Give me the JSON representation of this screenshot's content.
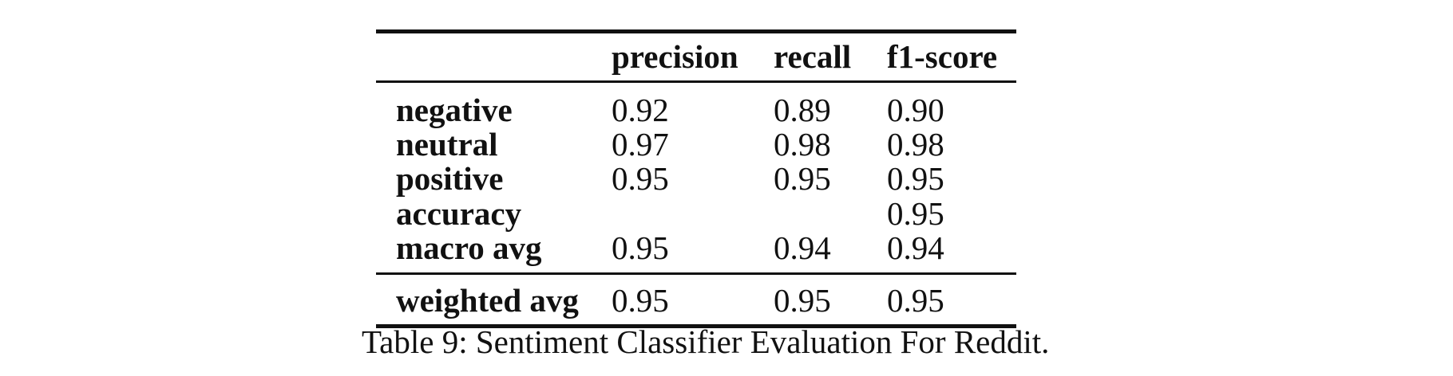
{
  "table": {
    "columns": [
      "",
      "precision",
      "recall",
      "f1-score"
    ],
    "rows": [
      {
        "label": "negative",
        "precision": "0.92",
        "recall": "0.89",
        "f1": "0.90"
      },
      {
        "label": "neutral",
        "precision": "0.97",
        "recall": "0.98",
        "f1": "0.98"
      },
      {
        "label": "positive",
        "precision": "0.95",
        "recall": "0.95",
        "f1": "0.95"
      },
      {
        "label": "accuracy",
        "precision": "",
        "recall": "",
        "f1": "0.95"
      },
      {
        "label": "macro avg",
        "precision": "0.95",
        "recall": "0.94",
        "f1": "0.94"
      },
      {
        "label": "weighted avg",
        "precision": "0.95",
        "recall": "0.95",
        "f1": "0.95"
      }
    ]
  },
  "caption": "Table 9: Sentiment Classifier Evaluation For Reddit."
}
